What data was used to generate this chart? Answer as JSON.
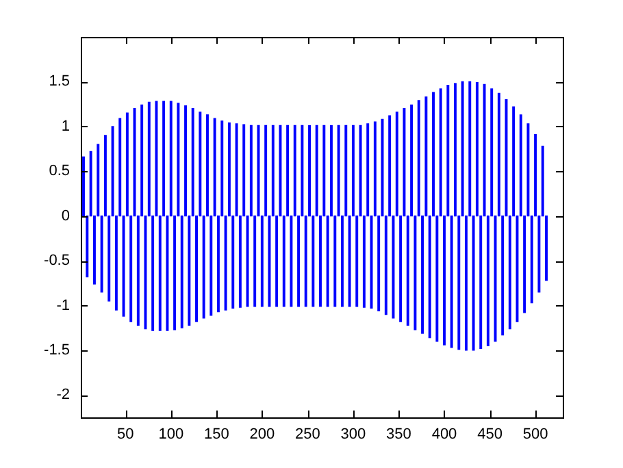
{
  "chart_data": {
    "type": "bar",
    "grid": false,
    "legend": false,
    "xlim": [
      1,
      530
    ],
    "ylim": [
      -2.25,
      2
    ],
    "xticks": [
      50,
      100,
      150,
      200,
      250,
      300,
      350,
      400,
      450,
      500
    ],
    "yticks": [
      -2,
      -1.5,
      -1,
      -0.5,
      0,
      0.5,
      1,
      1.5
    ],
    "x": [
      4,
      8,
      12,
      16,
      20,
      24,
      28,
      32,
      36,
      40,
      44,
      48,
      52,
      56,
      60,
      64,
      68,
      72,
      76,
      80,
      84,
      88,
      92,
      96,
      100,
      104,
      108,
      112,
      116,
      120,
      124,
      128,
      132,
      136,
      140,
      144,
      148,
      152,
      156,
      160,
      164,
      168,
      172,
      176,
      180,
      184,
      188,
      192,
      196,
      200,
      204,
      208,
      212,
      216,
      220,
      224,
      228,
      232,
      236,
      240,
      244,
      248,
      252,
      256,
      260,
      264,
      268,
      272,
      276,
      280,
      284,
      288,
      292,
      296,
      300,
      304,
      308,
      312,
      316,
      320,
      324,
      328,
      332,
      336,
      340,
      344,
      348,
      352,
      356,
      360,
      364,
      368,
      372,
      376,
      380,
      384,
      388,
      392,
      396,
      400,
      404,
      408,
      412,
      416,
      420,
      424,
      428,
      432,
      436,
      440,
      444,
      448,
      452,
      456,
      460,
      464,
      468,
      472,
      476,
      480,
      484,
      488,
      492,
      496,
      500,
      504,
      508,
      512
    ],
    "series": [
      {
        "color": "#0000ff",
        "values": [
          0.66,
          -0.68,
          0.72,
          -0.76,
          0.8,
          -0.85,
          0.9,
          -0.95,
          1.0,
          -1.05,
          1.09,
          -1.12,
          1.15,
          -1.18,
          1.2,
          -1.22,
          1.24,
          -1.26,
          1.27,
          -1.28,
          1.28,
          -1.28,
          1.28,
          -1.28,
          1.28,
          -1.27,
          1.26,
          -1.25,
          1.23,
          -1.22,
          1.2,
          -1.18,
          1.16,
          -1.14,
          1.13,
          -1.11,
          1.09,
          -1.07,
          1.06,
          -1.05,
          1.04,
          -1.03,
          1.03,
          -1.02,
          1.02,
          -1.01,
          1.01,
          -1.01,
          1.01,
          -1.01,
          1.01,
          -1.01,
          1.01,
          -1.01,
          1.01,
          -1.01,
          1.01,
          -1.01,
          1.01,
          -1.01,
          1.01,
          -1.01,
          1.01,
          -1.01,
          1.01,
          -1.01,
          1.01,
          -1.01,
          1.01,
          -1.01,
          1.01,
          -1.01,
          1.01,
          -1.01,
          1.01,
          -1.01,
          1.01,
          -1.02,
          1.03,
          -1.03,
          1.05,
          -1.06,
          1.08,
          -1.1,
          1.12,
          -1.14,
          1.16,
          -1.18,
          1.2,
          -1.22,
          1.24,
          -1.27,
          1.29,
          -1.31,
          1.33,
          -1.36,
          1.38,
          -1.4,
          1.42,
          -1.44,
          1.46,
          -1.47,
          1.48,
          -1.49,
          1.5,
          -1.5,
          1.5,
          -1.5,
          1.49,
          -1.48,
          1.47,
          -1.45,
          1.42,
          -1.4,
          1.37,
          -1.33,
          1.3,
          -1.26,
          1.22,
          -1.18,
          1.13,
          -1.08,
          1.03,
          -0.97,
          0.91,
          -0.85,
          0.78,
          -0.72
        ]
      }
    ]
  }
}
